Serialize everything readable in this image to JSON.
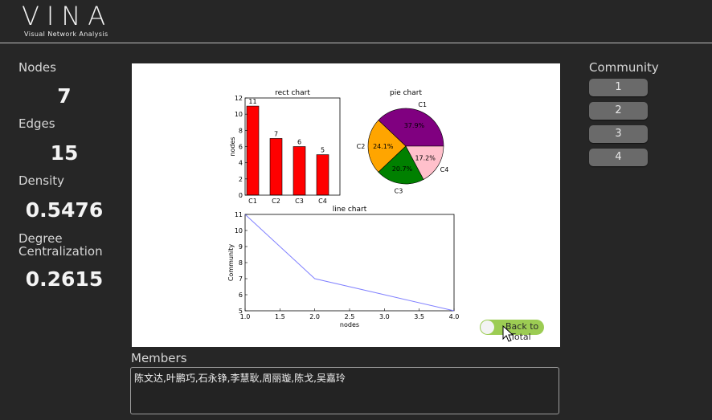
{
  "app": {
    "title": "VINA",
    "subtitle": "Visual Network Analysis"
  },
  "stats": {
    "nodes_label": "Nodes",
    "nodes_value": "7",
    "edges_label": "Edges",
    "edges_value": "15",
    "density_label": "Density",
    "density_value": "0.5476",
    "degree_label_line1": "Degree",
    "degree_label_line2": "Centralization",
    "degree_value": "0.2615"
  },
  "community": {
    "title": "Community",
    "buttons": [
      "1",
      "2",
      "3",
      "4"
    ]
  },
  "members": {
    "title": "Members",
    "text": "陈文达,叶鹏巧,石永铮,李慧耿,周丽璇,陈戈,吴嘉玲"
  },
  "toggle": {
    "label_line1": "Back to",
    "label_line2": "Total",
    "on": true
  },
  "colors": {
    "background": "#262626",
    "bar": "#ff0000",
    "toggle": "#9ccc53",
    "line": "#8080ff"
  },
  "chart_data": [
    {
      "type": "bar",
      "title": "rect chart",
      "ylabel": "nodes",
      "categories": [
        "C1",
        "C2",
        "C3",
        "C4"
      ],
      "values": [
        11,
        7,
        6,
        5
      ],
      "data_labels": [
        "11",
        "7",
        "6",
        "5"
      ],
      "ylim": [
        0,
        12
      ],
      "yticks": [
        "0",
        "2",
        "4",
        "6",
        "8",
        "10",
        "12"
      ]
    },
    {
      "type": "pie",
      "title": "pie chart",
      "labels": [
        "C1",
        "C2",
        "C3",
        "C4"
      ],
      "values": [
        37.9,
        24.1,
        20.7,
        17.2
      ],
      "pct_labels": [
        "37.9%",
        "24.1%",
        "20.7%",
        "17.2%"
      ],
      "colors": [
        "#800080",
        "#ffa500",
        "#008000",
        "#ffc0cb"
      ]
    },
    {
      "type": "line",
      "title": "line chart",
      "xlabel": "nodes",
      "ylabel": "Community",
      "x": [
        1,
        2,
        3,
        4
      ],
      "y": [
        11,
        7,
        6,
        5
      ],
      "xlim": [
        1,
        4
      ],
      "ylim": [
        5,
        11
      ],
      "xticks": [
        "1.0",
        "1.5",
        "2.0",
        "2.5",
        "3.0",
        "3.5",
        "4.0"
      ],
      "yticks": [
        "5",
        "6",
        "7",
        "8",
        "9",
        "10",
        "11"
      ]
    }
  ]
}
